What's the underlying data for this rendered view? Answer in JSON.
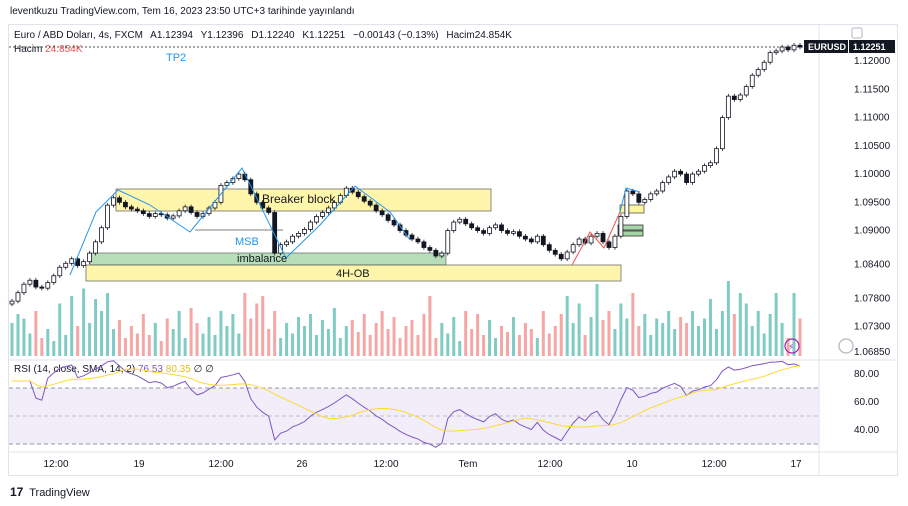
{
  "header": {
    "publisher": "leventkuzu TradingView.com, Tem 16, 2023 23:50 UTC+3 tarihinde yayınlandı"
  },
  "legend": {
    "symbol": "Euro / ABD Doları, 4s, FXCM",
    "open": "A1.12394",
    "high": "Y1.12396",
    "low": "D1.12240",
    "close": "K1.12251",
    "change": "−0.00143 (−0.13%)",
    "volume": "Hacim24.854K"
  },
  "volume_legend": {
    "label": "Hacim",
    "value": "24.854K"
  },
  "rsi_legend": {
    "label": "RSI (14, close, SMA, 14, 2)",
    "rsi": "76.53",
    "sma": "80.35",
    "extra1": "∅",
    "extra2": "∅"
  },
  "ticker_badge": "EURUSD",
  "last_price": "1.12251",
  "price_axis": [
    "1.12000",
    "1.11500",
    "1.11000",
    "1.10500",
    "1.10000",
    "1.09500",
    "1.09000",
    "1.08400",
    "1.07800",
    "1.07300",
    "1.06850"
  ],
  "rsi_axis": [
    "80.00",
    "60.00",
    "40.00"
  ],
  "time_axis": [
    "12:00",
    "19",
    "12:00",
    "26",
    "12:00",
    "Tem",
    "12:00",
    "10",
    "12:00",
    "17"
  ],
  "annotations": {
    "tp2": "TP2",
    "msb": "MSB",
    "breaker": "Breaker block",
    "imbalance": "imbalance",
    "ob": "4H-OB"
  },
  "footer": {
    "brand": "TradingView",
    "logo": "17"
  },
  "colors": {
    "up": "#26a69a",
    "down": "#ef5350",
    "zone": "#fff59d",
    "imb": "#a5d6a7",
    "rsi": "#7e57c2",
    "rsi_sma": "#fdd835",
    "link": "#2196f3"
  },
  "chart_data": {
    "type": "candlestick",
    "price_range": [
      1.0685,
      1.1225
    ],
    "rsi_range": [
      20,
      90
    ],
    "rsi_levels": [
      70,
      50,
      30
    ],
    "close": [
      1.0775,
      1.079,
      1.0805,
      1.0812,
      1.08,
      1.0798,
      1.0808,
      1.082,
      1.0835,
      1.0842,
      1.085,
      1.0838,
      1.0845,
      1.086,
      1.088,
      1.0905,
      1.0945,
      1.0958,
      1.095,
      1.0942,
      1.0938,
      1.0935,
      1.093,
      1.0925,
      1.093,
      1.0928,
      1.0922,
      1.0926,
      1.0935,
      1.0942,
      1.0932,
      1.0925,
      1.093,
      1.094,
      1.095,
      1.098,
      1.0985,
      1.0992,
      1.1,
      1.099,
      1.0965,
      1.095,
      1.094,
      1.0932,
      1.086,
      1.0875,
      1.088,
      1.089,
      1.0895,
      1.0902,
      1.0915,
      1.0925,
      1.0932,
      1.094,
      1.095,
      1.0962,
      1.0975,
      1.0968,
      1.096,
      1.0952,
      1.0945,
      1.0935,
      1.0928,
      1.0918,
      1.091,
      1.09,
      1.0892,
      1.0885,
      1.088,
      1.087,
      1.0865,
      1.0855,
      1.086,
      1.09,
      1.0915,
      1.092,
      1.0912,
      1.0905,
      1.09,
      1.0895,
      1.0905,
      1.091,
      1.09,
      1.0895,
      1.0898,
      1.089,
      1.0885,
      1.088,
      1.089,
      1.0875,
      1.0865,
      1.0858,
      1.085,
      1.0862,
      1.0875,
      1.0885,
      1.0878,
      1.089,
      1.0895,
      1.088,
      1.087,
      1.089,
      1.0925,
      1.097,
      1.0965,
      1.095,
      1.0955,
      1.0965,
      1.097,
      1.0985,
      1.0995,
      1.1005,
      1.1,
      1.0985,
      1.1,
      1.1005,
      1.1015,
      1.102,
      1.1045,
      1.11,
      1.1138,
      1.1132,
      1.114,
      1.1155,
      1.1175,
      1.1185,
      1.1198,
      1.1215,
      1.1218,
      1.1225,
      1.122,
      1.1228,
      1.1225
    ],
    "volume": [
      22,
      28,
      25,
      15,
      30,
      12,
      18,
      10,
      35,
      14,
      40,
      20,
      45,
      22,
      38,
      30,
      42,
      18,
      24,
      12,
      20,
      15,
      28,
      14,
      22,
      10,
      25,
      18,
      30,
      12,
      32,
      22,
      15,
      26,
      14,
      30,
      20,
      28,
      15,
      42,
      25,
      35,
      40,
      18,
      30,
      12,
      22,
      15,
      26,
      20,
      28,
      14,
      24,
      18,
      32,
      12,
      20,
      24,
      16,
      28,
      14,
      22,
      30,
      18,
      26,
      12,
      20,
      24,
      14,
      28,
      40,
      12,
      22,
      15,
      26,
      10,
      30,
      18,
      28,
      14,
      24,
      12,
      20,
      16,
      26,
      14,
      22,
      18,
      12,
      30,
      15,
      20,
      28,
      40,
      22,
      35,
      14,
      26,
      48,
      24,
      30,
      18,
      35,
      25,
      42,
      20,
      28,
      14,
      25,
      22,
      30,
      18,
      26,
      22,
      30,
      20,
      25,
      38,
      18,
      30,
      50,
      28,
      42,
      35,
      20,
      30,
      15,
      28,
      42,
      22,
      12,
      42,
      25
    ]
  }
}
